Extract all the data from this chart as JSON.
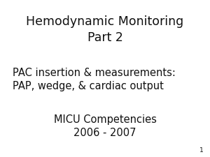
{
  "background_color": "#ffffff",
  "title_line1": "Hemodynamic Monitoring",
  "title_line2": "Part 2",
  "subtitle_line1": "PAC insertion & measurements:",
  "subtitle_line2": "PAP, wedge, & cardiac output",
  "footer_line1": "MICU Competencies",
  "footer_line2": "2006 - 2007",
  "page_number": "1",
  "title_fontsize": 12.5,
  "subtitle_fontsize": 10.5,
  "footer_fontsize": 10.5,
  "page_num_fontsize": 6.5,
  "font_color": "#111111",
  "font_family": "DejaVu Sans"
}
